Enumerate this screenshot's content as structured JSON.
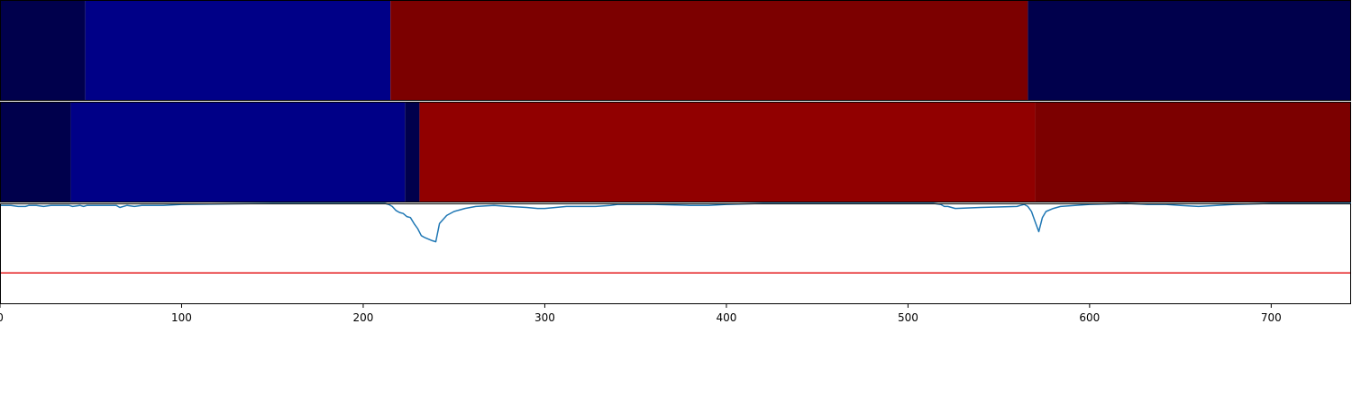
{
  "chart_data": [
    {
      "type": "heatmap",
      "xlim": [
        0,
        744
      ],
      "segments": [
        {
          "start": 0,
          "end": 47,
          "color": "#00004c"
        },
        {
          "start": 47,
          "end": 215,
          "color": "#000087"
        },
        {
          "start": 215,
          "end": 566,
          "color": "#7c0000"
        },
        {
          "start": 566,
          "end": 744,
          "color": "#00004c"
        }
      ]
    },
    {
      "type": "heatmap",
      "xlim": [
        0,
        744
      ],
      "segments": [
        {
          "start": 0,
          "end": 39,
          "color": "#00004c"
        },
        {
          "start": 39,
          "end": 223,
          "color": "#000087"
        },
        {
          "start": 223,
          "end": 231,
          "color": "#00004c"
        },
        {
          "start": 231,
          "end": 570,
          "color": "#910000"
        },
        {
          "start": 570,
          "end": 744,
          "color": "#7c0000"
        }
      ]
    },
    {
      "type": "line",
      "xlim": [
        0,
        744
      ],
      "ylim": [
        0,
        1
      ],
      "threshold": {
        "y": 0.31,
        "color": "#e41a1c"
      },
      "series": [
        {
          "color": "#1f77b4",
          "x": [
            0,
            6,
            10,
            14,
            16,
            20,
            24,
            28,
            32,
            38,
            40,
            44,
            46,
            48,
            50,
            54,
            58,
            62,
            64,
            66,
            70,
            74,
            78,
            82,
            90,
            100,
            150,
            200,
            212,
            214,
            216,
            218,
            220,
            222,
            224,
            226,
            228,
            230,
            232,
            234,
            238,
            240,
            242,
            246,
            250,
            256,
            262,
            272,
            280,
            290,
            296,
            300,
            306,
            312,
            320,
            328,
            336,
            340,
            360,
            380,
            390,
            400,
            420,
            450,
            480,
            500,
            514,
            518,
            520,
            522,
            526,
            540,
            560,
            562,
            564,
            566,
            568,
            570,
            572,
            574,
            576,
            580,
            584,
            600,
            620,
            632,
            642,
            650,
            660,
            680,
            700,
            720,
            744
          ],
          "y": [
            0.98,
            0.98,
            0.97,
            0.97,
            0.98,
            0.98,
            0.97,
            0.98,
            0.98,
            0.98,
            0.97,
            0.98,
            0.97,
            0.98,
            0.98,
            0.98,
            0.98,
            0.98,
            0.98,
            0.96,
            0.98,
            0.97,
            0.98,
            0.98,
            0.98,
            0.99,
            1.0,
            1.0,
            1.0,
            0.99,
            0.97,
            0.93,
            0.91,
            0.9,
            0.87,
            0.86,
            0.8,
            0.75,
            0.68,
            0.66,
            0.63,
            0.62,
            0.8,
            0.88,
            0.92,
            0.95,
            0.97,
            0.98,
            0.97,
            0.96,
            0.95,
            0.95,
            0.96,
            0.97,
            0.97,
            0.97,
            0.98,
            0.99,
            0.99,
            0.98,
            0.98,
            0.99,
            1.0,
            1.0,
            1.0,
            1.0,
            1.0,
            0.99,
            0.97,
            0.97,
            0.95,
            0.96,
            0.97,
            0.98,
            0.99,
            0.97,
            0.92,
            0.82,
            0.72,
            0.86,
            0.92,
            0.95,
            0.97,
            0.99,
            1.0,
            0.99,
            0.99,
            0.98,
            0.97,
            0.99,
            1.0,
            1.0,
            1.0
          ]
        }
      ]
    }
  ],
  "x_ticks": [
    "0",
    "100",
    "200",
    "300",
    "400",
    "500",
    "600",
    "700"
  ]
}
